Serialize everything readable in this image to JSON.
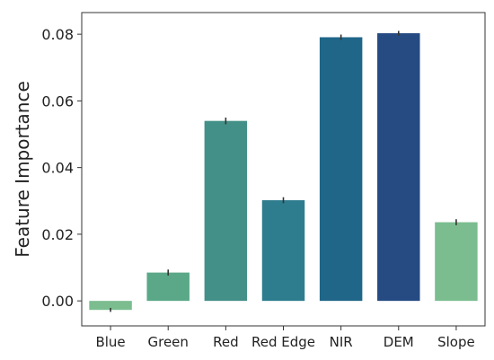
{
  "chart_data": {
    "type": "bar",
    "categories": [
      "Blue",
      "Green",
      "Red",
      "Red Edge",
      "NIR",
      "DEM",
      "Slope"
    ],
    "values": [
      -0.0027,
      0.0085,
      0.054,
      0.0302,
      0.0791,
      0.0803,
      0.0236
    ],
    "errors": [
      0.0006,
      0.0009,
      0.001,
      0.0009,
      0.0008,
      0.0007,
      0.0009
    ],
    "colors": [
      "#7bbd8f",
      "#5aa888",
      "#439088",
      "#2e7d8e",
      "#1f6689",
      "#264b82",
      "#7bbd8f"
    ],
    "ylabel": "Feature Importance",
    "xlabel": "",
    "ylim": [
      -0.0075,
      0.0865
    ],
    "yticks": [
      0.0,
      0.02,
      0.04,
      0.06,
      0.08
    ],
    "ytick_labels": [
      "0.00",
      "0.02",
      "0.04",
      "0.06",
      "0.08"
    ],
    "grid": false,
    "legend": "none"
  }
}
